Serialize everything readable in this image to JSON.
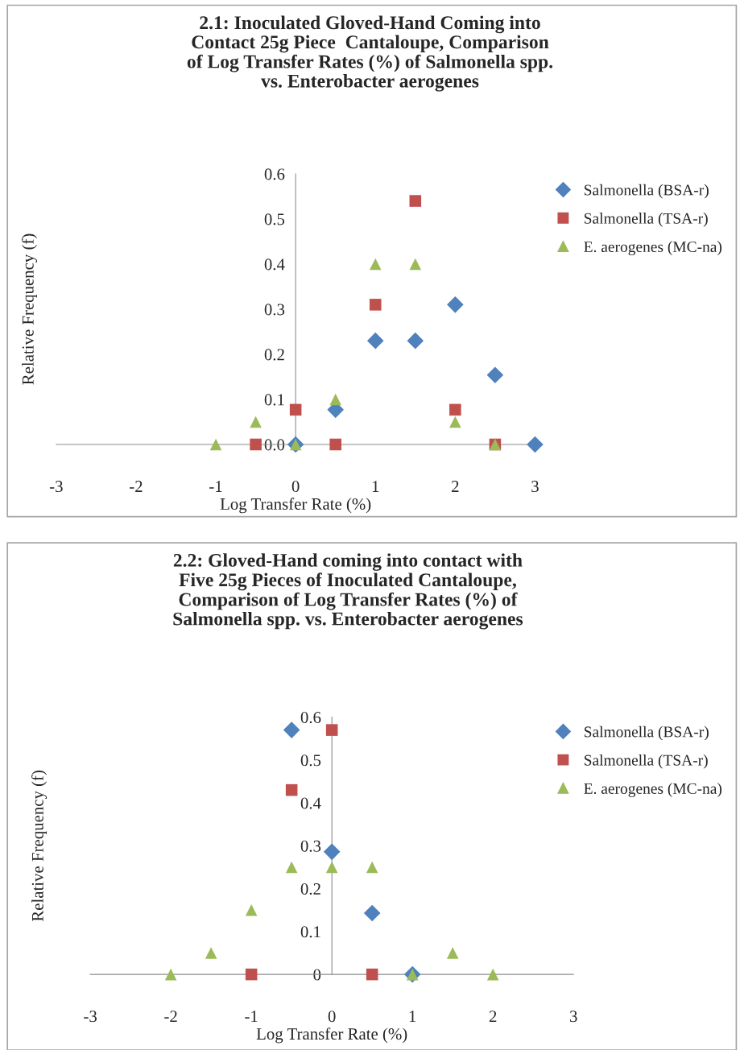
{
  "chart_data": [
    {
      "type": "scatter",
      "title": "2.1: Inoculated Gloved-Hand Coming into\nContact 25g Piece  Cantaloupe, Comparison\nof Log Transfer Rates (%) of Salmonella spp.\nvs. Enterobacter aerogenes",
      "xlabel": "Log Transfer Rate (%)",
      "ylabel": "Relative Frequency (f)",
      "xlim": [
        -3,
        3
      ],
      "ylim": [
        0,
        0.6
      ],
      "xticks": [
        -3,
        -2,
        -1,
        0,
        1,
        2,
        3
      ],
      "yticks": [
        {
          "value": 0,
          "label": "0.0"
        },
        0.1,
        0.2,
        0.3,
        0.4,
        0.5,
        0.6
      ],
      "grid": false,
      "legend": "top right",
      "series": [
        {
          "name": "Salmonella (BSA-r)",
          "color": "#4f81bd",
          "marker": "diamond",
          "x": [
            0,
            0.5,
            1,
            1.5,
            2,
            2.5,
            3
          ],
          "values": [
            0,
            0.077,
            0.23,
            0.23,
            0.31,
            0.154,
            0
          ]
        },
        {
          "name": "Salmonella (TSA-r)",
          "color": "#c0504d",
          "marker": "square",
          "x": [
            -0.5,
            0,
            0.5,
            1,
            1.5,
            2,
            2.5
          ],
          "values": [
            0,
            0.077,
            0,
            0.31,
            0.54,
            0.077,
            0
          ]
        },
        {
          "name": "E. aerogenes (MC-na)",
          "color": "#9bbb59",
          "marker": "triangle",
          "x": [
            -1,
            -0.5,
            0,
            0.5,
            1,
            1.5,
            2,
            2.5
          ],
          "values": [
            0,
            0.05,
            0,
            0.1,
            0.4,
            0.4,
            0.05,
            0
          ]
        }
      ]
    },
    {
      "type": "scatter",
      "title": "2.2: Gloved-Hand coming into contact with\nFive 25g Pieces of Inoculated Cantaloupe,\nComparison of Log Transfer Rates (%) of\nSalmonella spp. vs. Enterobacter aerogenes",
      "xlabel": "Log Transfer Rate (%)",
      "ylabel": "Relative Frequency (f)",
      "xlim": [
        -3,
        3
      ],
      "ylim": [
        0,
        0.6
      ],
      "xticks": [
        -3,
        -2,
        -1,
        0,
        1,
        2,
        3
      ],
      "yticks": [
        0,
        0.1,
        0.2,
        0.3,
        0.4,
        0.5,
        0.6
      ],
      "grid": false,
      "legend": "top right",
      "series": [
        {
          "name": "Salmonella (BSA-r)",
          "color": "#4f81bd",
          "marker": "diamond",
          "x": [
            -0.5,
            0,
            0.5,
            1
          ],
          "values": [
            0.57,
            0.286,
            0.143,
            0
          ]
        },
        {
          "name": "Salmonella (TSA-r)",
          "color": "#c0504d",
          "marker": "square",
          "x": [
            -1,
            -0.5,
            0,
            0.5
          ],
          "values": [
            0,
            0.43,
            0.57,
            0
          ]
        },
        {
          "name": "E. aerogenes (MC-na)",
          "color": "#9bbb59",
          "marker": "triangle",
          "x": [
            -2,
            -1.5,
            -1,
            -0.5,
            0,
            0.5,
            1,
            1.5,
            2
          ],
          "values": [
            0,
            0.05,
            0.15,
            0.25,
            0.25,
            0.25,
            0,
            0.05,
            0
          ]
        }
      ]
    }
  ]
}
